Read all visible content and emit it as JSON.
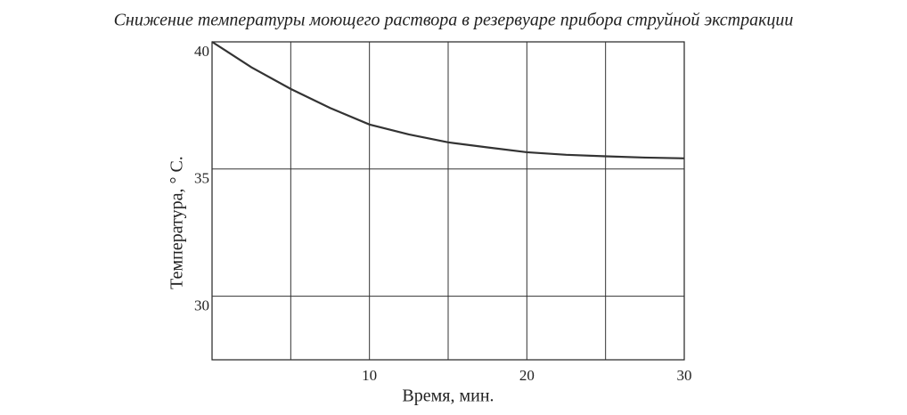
{
  "chart_data": {
    "type": "line",
    "title": "Снижение температуры моющего раствора в резервуаре прибора струйной экстракции",
    "x_label": "Время, мин.",
    "y_label": "Температура, ° С.",
    "x": [
      0,
      2.5,
      5,
      7.5,
      10,
      12.5,
      15,
      17.5,
      20,
      22.5,
      25,
      27.5,
      30
    ],
    "series": [
      {
        "name": "Температура",
        "color": "#333333",
        "values": [
          40,
          39.0,
          38.15,
          37.4,
          36.75,
          36.36,
          36.05,
          35.85,
          35.66,
          35.56,
          35.5,
          35.45,
          35.42
        ]
      }
    ],
    "xlim": [
      0,
      30
    ],
    "ylim": [
      27.5,
      40
    ],
    "xticks": [
      10,
      20,
      30
    ],
    "yticks": [
      30,
      35,
      40
    ],
    "xgrid": [
      5,
      10,
      15,
      20,
      25
    ],
    "ygrid": [
      30,
      35
    ],
    "grid": true
  }
}
